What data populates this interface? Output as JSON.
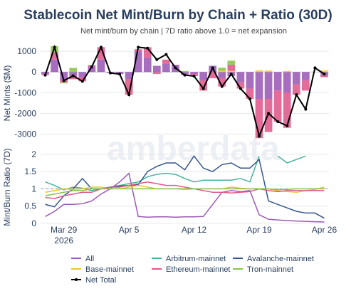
{
  "title": "Stablecoin Net Mint/Burn by Chain + Ratio (30D)",
  "subtitle": "Net mint/burn by chain | 7D ratio above 1.0 = net expansion",
  "watermark": "amberdata",
  "colors": {
    "All": "#9b59b6",
    "Arbitrum-mainnet": "#45b39d",
    "Avalanche-mainnet": "#34568b",
    "Base-mainnet": "#f1c232",
    "Ethereum-mainnet": "#e0588a",
    "Tron-mainnet": "#8bc34a",
    "Net Total": "#000000"
  },
  "chart_data": [
    {
      "type": "bar",
      "stacked": true,
      "ylabel": "Net Mints ($M)",
      "ylim": [
        -3400,
        1350
      ],
      "yticks": [
        1000,
        0,
        -1000,
        -2000,
        -3000
      ],
      "grid": true,
      "dates": [
        "Mar 27",
        "Mar 28",
        "Mar 29",
        "Mar 30",
        "Mar 31",
        "Apr 1",
        "Apr 2",
        "Apr 3",
        "Apr 4",
        "Apr 5",
        "Apr 6",
        "Apr 7",
        "Apr 8",
        "Apr 9",
        "Apr 10",
        "Apr 11",
        "Apr 12",
        "Apr 13",
        "Apr 14",
        "Apr 15",
        "Apr 16",
        "Apr 17",
        "Apr 18",
        "Apr 19",
        "Apr 20",
        "Apr 21",
        "Apr 22",
        "Apr 23",
        "Apr 24",
        "Apr 25",
        "Apr 26"
      ],
      "series": [
        {
          "name": "All",
          "values": [
            -100,
            600,
            -400,
            -200,
            -250,
            200,
            600,
            -50,
            -100,
            -350,
            1000,
            700,
            300,
            400,
            350,
            -150,
            -100,
            -400,
            300,
            -300,
            -200,
            -500,
            -800,
            -1300,
            -1300,
            -900,
            -1000,
            -600,
            -400,
            0,
            -150
          ]
        },
        {
          "name": "Arbitrum-mainnet",
          "values": [
            0,
            0,
            0,
            0,
            0,
            0,
            0,
            0,
            0,
            0,
            0,
            0,
            0,
            0,
            0,
            0,
            0,
            0,
            0,
            0,
            0,
            0,
            0,
            0,
            0,
            0,
            0,
            0,
            0,
            0,
            0
          ]
        },
        {
          "name": "Avalanche-mainnet",
          "values": [
            0,
            0,
            0,
            0,
            0,
            0,
            0,
            0,
            0,
            0,
            0,
            0,
            0,
            0,
            0,
            0,
            0,
            0,
            0,
            0,
            0,
            0,
            0,
            0,
            0,
            0,
            0,
            0,
            0,
            0,
            0
          ]
        },
        {
          "name": "Base-mainnet",
          "values": [
            0,
            0,
            0,
            0,
            0,
            0,
            0,
            0,
            0,
            0,
            0,
            0,
            0,
            0,
            0,
            0,
            0,
            0,
            0,
            60,
            50,
            0,
            0,
            80,
            70,
            0,
            50,
            0,
            0,
            0,
            80
          ]
        },
        {
          "name": "Ethereum-mainnet",
          "values": [
            -50,
            350,
            -100,
            -150,
            -200,
            100,
            600,
            0,
            0,
            -750,
            100,
            500,
            -100,
            200,
            0,
            0,
            -100,
            -500,
            -300,
            -400,
            300,
            -300,
            -500,
            -1900,
            -1600,
            -1500,
            -1700,
            -500,
            -500,
            0,
            -100
          ]
        },
        {
          "name": "Tron-mainnet",
          "values": [
            0,
            300,
            -50,
            200,
            0,
            50,
            0,
            0,
            0,
            0,
            0,
            0,
            0,
            0,
            0,
            50,
            0,
            0,
            0,
            150,
            200,
            0,
            0,
            0,
            0,
            0,
            0,
            0,
            0,
            0,
            0
          ]
        }
      ],
      "net_total": [
        -150,
        1200,
        -420,
        -180,
        -450,
        250,
        1200,
        -50,
        -100,
        -1100,
        1200,
        1150,
        600,
        850,
        200,
        -150,
        -200,
        -800,
        200,
        -700,
        -100,
        -800,
        -1300,
        -3100,
        -2000,
        -2400,
        -2600,
        -1100,
        -1800,
        200,
        -100
      ]
    },
    {
      "type": "line",
      "ylabel": "Mint/Burn Ratio (7D)",
      "ylim": [
        0,
        2.1
      ],
      "yticks": [
        0,
        0.5,
        1,
        1.5,
        2
      ],
      "reference_line": 1.0,
      "xtick_labels": [
        "Mar 29\n2026",
        "Apr 5",
        "Apr 12",
        "Apr 19",
        "Apr 26"
      ],
      "xtick_dates": [
        "Mar 29",
        "Apr 5",
        "Apr 12",
        "Apr 19",
        "Apr 26"
      ],
      "dates": [
        "Mar 27",
        "Mar 28",
        "Mar 29",
        "Mar 30",
        "Mar 31",
        "Apr 1",
        "Apr 2",
        "Apr 3",
        "Apr 4",
        "Apr 5",
        "Apr 6",
        "Apr 7",
        "Apr 8",
        "Apr 9",
        "Apr 10",
        "Apr 11",
        "Apr 12",
        "Apr 13",
        "Apr 14",
        "Apr 15",
        "Apr 16",
        "Apr 17",
        "Apr 18",
        "Apr 19",
        "Apr 20",
        "Apr 21",
        "Apr 22",
        "Apr 23",
        "Apr 24",
        "Apr 25",
        "Apr 26"
      ],
      "series": [
        {
          "name": "All",
          "values": [
            0.2,
            0.35,
            0.55,
            0.55,
            0.57,
            0.65,
            0.85,
            1.0,
            1.2,
            1.45,
            0.2,
            0.18,
            0.19,
            0.19,
            0.18,
            0.19,
            0.19,
            0.2,
            0.55,
            0.9,
            0.95,
            0.92,
            0.95,
            0.25,
            0.12,
            0.1,
            0.08,
            0.07,
            0.06,
            0.05,
            0.04
          ]
        },
        {
          "name": "Arbitrum-mainnet",
          "values": [
            1.2,
            1.1,
            0.97,
            1.05,
            1.02,
            0.95,
            1.0,
            1.05,
            1.1,
            1.15,
            1.2,
            1.35,
            1.42,
            1.45,
            1.42,
            1.3,
            1.2,
            1.25,
            1.25,
            1.25,
            1.25,
            1.3,
            1.2,
            1.95,
            null,
            1.95,
            1.75,
            1.85,
            1.95,
            null,
            null
          ]
        },
        {
          "name": "Avalanche-mainnet",
          "values": [
            0.55,
            0.48,
            0.8,
            1.0,
            1.3,
            1.0,
            1.0,
            1.05,
            1.08,
            1.1,
            1.12,
            1.5,
            1.65,
            1.75,
            1.75,
            1.55,
            1.95,
            1.6,
            1.5,
            1.7,
            1.75,
            1.6,
            1.6,
            1.85,
            0.65,
            0.55,
            0.45,
            0.35,
            0.3,
            0.3,
            0.15
          ]
        },
        {
          "name": "Base-mainnet",
          "values": [
            0.9,
            0.95,
            1.0,
            0.98,
            1.0,
            1.05,
            1.05,
            1.0,
            1.0,
            1.05,
            1.1,
            1.05,
            1.0,
            1.0,
            1.0,
            0.98,
            1.0,
            1.0,
            1.0,
            1.0,
            1.05,
            1.02,
            1.0,
            1.0,
            1.0,
            0.95,
            0.92,
            0.9,
            0.95,
            0.98,
            1.05
          ]
        },
        {
          "name": "Ethereum-mainnet",
          "values": [
            0.75,
            0.72,
            0.8,
            0.85,
            0.9,
            0.9,
            1.0,
            1.05,
            1.05,
            1.1,
            1.15,
            1.2,
            1.15,
            1.1,
            1.1,
            1.05,
            1.0,
            0.95,
            0.9,
            0.9,
            0.88,
            0.9,
            0.92,
            1.0,
            0.95,
            0.92,
            0.95,
            0.95,
            0.95,
            0.95,
            0.95
          ]
        },
        {
          "name": "Tron-mainnet",
          "values": [
            0.8,
            0.85,
            0.9,
            0.95,
            0.95,
            1.0,
            1.0,
            1.0,
            1.0,
            1.0,
            1.0,
            1.0,
            1.0,
            1.0,
            1.0,
            1.0,
            1.0,
            1.0,
            1.0,
            1.0,
            1.0,
            1.0,
            1.0,
            1.0,
            1.0,
            0.98,
            0.98,
            1.0,
            1.0,
            1.0,
            1.0
          ]
        }
      ]
    }
  ],
  "legend": [
    {
      "name": "All",
      "kind": "line"
    },
    {
      "name": "Arbitrum-mainnet",
      "kind": "line"
    },
    {
      "name": "Avalanche-mainnet",
      "kind": "line"
    },
    {
      "name": "Base-mainnet",
      "kind": "line"
    },
    {
      "name": "Ethereum-mainnet",
      "kind": "line"
    },
    {
      "name": "Tron-mainnet",
      "kind": "line"
    },
    {
      "name": "Net Total",
      "kind": "marker-line"
    }
  ]
}
